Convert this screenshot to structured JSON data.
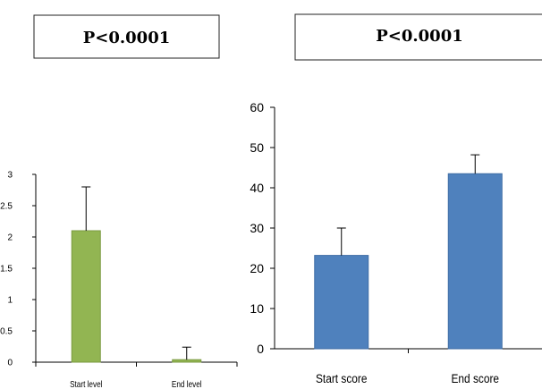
{
  "annotations": {
    "left_p_value": "P<0.0001",
    "right_p_value": "P<0.0001"
  },
  "chart_data": [
    {
      "type": "bar",
      "categories": [
        "Start level",
        "End level"
      ],
      "values": [
        2.1,
        0.04
      ],
      "error_bars": [
        0.7,
        0.2
      ],
      "ylim": [
        0,
        3
      ],
      "yticks": [
        0,
        0.5,
        1,
        1.5,
        2,
        2.5,
        3
      ],
      "ytick_labels": [
        "0",
        "0.5",
        "1",
        "1.5",
        "2",
        "2.5",
        "3"
      ],
      "title": "",
      "xlabel": "",
      "ylabel": "",
      "grid": false,
      "bar_color": "#92b552",
      "bar_stroke": "#7a9a40"
    },
    {
      "type": "bar",
      "categories": [
        "Start score",
        "End score"
      ],
      "values": [
        23.2,
        43.5
      ],
      "error_bars": [
        6.8,
        4.7
      ],
      "ylim": [
        0,
        60
      ],
      "yticks": [
        0,
        10,
        20,
        30,
        40,
        50,
        60
      ],
      "ytick_labels": [
        "0",
        "10",
        "20",
        "30",
        "40",
        "50",
        "60"
      ],
      "title": "",
      "xlabel": "",
      "ylabel": "",
      "grid": false,
      "bar_color": "#4f81bd",
      "bar_stroke": "#3f6da5"
    }
  ]
}
